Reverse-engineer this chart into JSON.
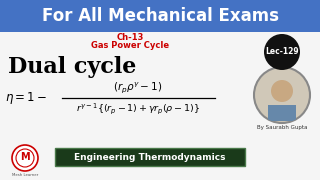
{
  "top_banner_color": "#4472c4",
  "top_banner_text": "For All Mechanical Exams",
  "top_banner_text_color": "#ffffff",
  "background_color": "#f5f5f5",
  "ch_text": "Ch-13",
  "ch_color": "#cc0000",
  "gas_text": "Gas Power Cycle",
  "gas_color": "#cc0000",
  "title_text": "Dual cycle",
  "title_color": "#000000",
  "lec_circle_color": "#111111",
  "lec_text": "Lec-129",
  "lec_text_color": "#ffffff",
  "bottom_banner_color": "#1a3a1a",
  "bottom_text": "Engineering Thermodynamics",
  "bottom_text_color": "#ffffff",
  "by_text": "By Saurabh Gupta",
  "by_text_color": "#333333",
  "logo_color": "#cc0000"
}
